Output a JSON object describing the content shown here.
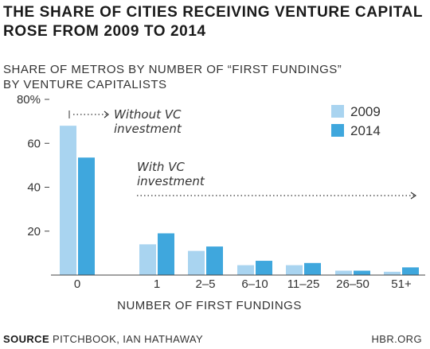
{
  "header": {
    "title_line1": "The share of cities receiving venture capital",
    "title_line2": "rose from 2009 to 2014",
    "subtitle_line1": "SHARE OF METROS BY NUMBER OF “FIRST FUNDINGS”",
    "subtitle_line2": "BY VENTURE CAPITALISTS"
  },
  "footer": {
    "source_label": "SOURCE",
    "source_text": "PITCHBOOK, IAN HATHAWAY",
    "brand": "HBR.ORG"
  },
  "chart_data": {
    "type": "bar",
    "categories": [
      "0",
      "1",
      "2–5",
      "6–10",
      "11–25",
      "26–50",
      "51+"
    ],
    "series": [
      {
        "name": "2009",
        "color": "#a9d4f0",
        "values": [
          68,
          14,
          11,
          4.5,
          4.5,
          2,
          1.5
        ]
      },
      {
        "name": "2014",
        "color": "#3fa7dd",
        "values": [
          53.5,
          19,
          13,
          6.5,
          5.5,
          2,
          3.5
        ]
      }
    ],
    "xlabel": "NUMBER OF FIRST FUNDINGS",
    "ylabel": "",
    "ylim": [
      0,
      80
    ],
    "yticks": [
      {
        "value": 20,
        "label": "20"
      },
      {
        "value": 40,
        "label": "40"
      },
      {
        "value": 60,
        "label": "60"
      },
      {
        "value": 80,
        "label": "80%"
      }
    ],
    "legend_position": "top-right",
    "annotations": [
      {
        "line1": "Without VC",
        "line2": "investment"
      },
      {
        "line1": "With VC",
        "line2": "investment"
      }
    ]
  }
}
